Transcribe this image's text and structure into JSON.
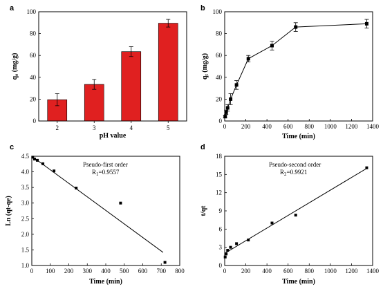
{
  "chart_data": [
    {
      "panel": "a",
      "type": "bar",
      "categories": [
        "2",
        "3",
        "4",
        "5"
      ],
      "values": [
        19.5,
        33.5,
        63.5,
        89.5
      ],
      "errors": [
        5.5,
        4.5,
        4.5,
        3.5
      ],
      "xlabel": "pH value",
      "ylabel": "q",
      "ylabel_sub": "e",
      "ylabel_unit": " (mg/g)",
      "ylim": [
        0,
        100
      ],
      "yticks": [
        "0",
        "20",
        "40",
        "60",
        "80",
        "100"
      ],
      "bar_color": "#e02020"
    },
    {
      "panel": "b",
      "type": "line",
      "x": [
        5,
        15,
        30,
        60,
        120,
        240,
        480,
        720,
        1440
      ],
      "y": [
        4,
        8,
        12,
        20,
        33,
        57,
        69,
        86,
        89
      ],
      "errors": [
        1,
        2,
        3,
        5,
        4,
        3,
        4,
        4,
        4
      ],
      "xlabel": "Time (min)",
      "ylabel": "q",
      "ylabel_sub": "t",
      "ylabel_unit": " (mg/g)",
      "xlim": [
        0,
        1500
      ],
      "ylim": [
        0,
        100
      ],
      "xticks": [
        "0",
        "200",
        "400",
        "600",
        "800",
        "1000",
        "1200",
        "1400"
      ],
      "yticks": [
        "0",
        "20",
        "40",
        "60",
        "80",
        "100"
      ]
    },
    {
      "panel": "c",
      "type": "scatter",
      "x": [
        5,
        15,
        30,
        60,
        120,
        240,
        480,
        720
      ],
      "y": [
        4.47,
        4.41,
        4.37,
        4.26,
        4.03,
        3.48,
        3.0,
        1.1
      ],
      "fit_line": {
        "x": [
          0,
          710
        ],
        "y": [
          4.5,
          1.42
        ]
      },
      "annotation_title": "Pseudo-first order",
      "annotation_r": "R",
      "annotation_r_sub": "1",
      "annotation_r_value": "=0.9557",
      "xlabel": "Time (min)",
      "ylabel": "Ln (qt-qe)",
      "xlim": [
        0,
        800
      ],
      "ylim": [
        1.0,
        4.5
      ],
      "xticks": [
        "0",
        "100",
        "200",
        "300",
        "400",
        "500",
        "600",
        "700",
        "800"
      ],
      "yticks": [
        "1.0",
        "1.5",
        "2.0",
        "2.5",
        "3.0",
        "3.5",
        "4.0",
        "4.5"
      ]
    },
    {
      "panel": "d",
      "type": "scatter",
      "x": [
        5,
        15,
        30,
        60,
        120,
        240,
        480,
        720,
        1440
      ],
      "y": [
        1.4,
        1.9,
        2.5,
        3.0,
        3.6,
        4.2,
        7.0,
        8.3,
        16.1
      ],
      "fit_line": {
        "x": [
          0,
          1440
        ],
        "y": [
          2.0,
          16.0
        ]
      },
      "annotation_title": "Pseudo-second order",
      "annotation_r": "R",
      "annotation_r_sub": "2",
      "annotation_r_value": "=0.9921",
      "xlabel": "Time (min)",
      "ylabel": "t/qt",
      "xlim": [
        0,
        1500
      ],
      "ylim": [
        0,
        18
      ],
      "xticks": [
        "0",
        "200",
        "400",
        "600",
        "800",
        "1000",
        "1200",
        "1400"
      ],
      "yticks": [
        "0",
        "3",
        "6",
        "9",
        "12",
        "15",
        "18"
      ]
    }
  ]
}
